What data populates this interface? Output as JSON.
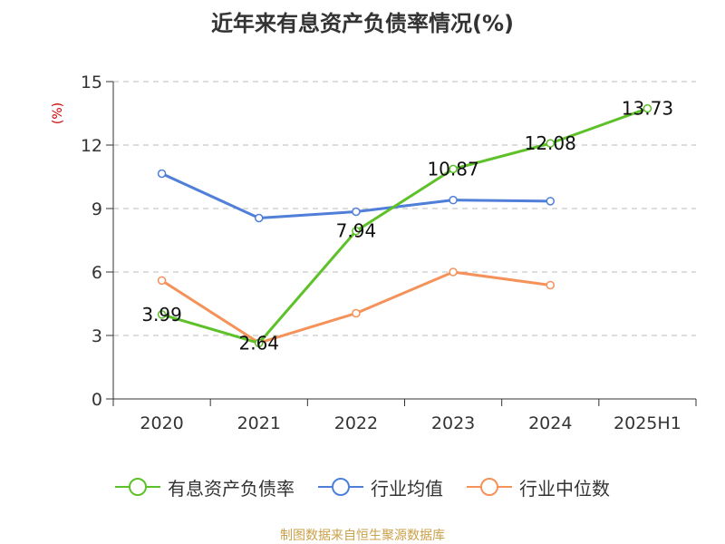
{
  "title": "近年来有息资产负债率情况(%)",
  "footer": "制图数据来自恒生聚源数据库",
  "chart_data": {
    "type": "line",
    "title": "近年来有息资产负债率情况(%)",
    "xlabel": "",
    "ylabel": "(%)",
    "categories": [
      "2020",
      "2021",
      "2022",
      "2023",
      "2024",
      "2025H1"
    ],
    "ylim": [
      0,
      15
    ],
    "yticks": [
      0,
      3,
      6,
      9,
      12,
      15
    ],
    "grid": true,
    "legend_position": "bottom",
    "series": [
      {
        "name": "有息资产负债率",
        "color": "#5ec129",
        "values": [
          3.99,
          2.64,
          7.94,
          10.87,
          12.08,
          13.73
        ],
        "labels": [
          "3.99",
          "2.64",
          "7.94",
          "10.87",
          "12.08",
          "13.73"
        ]
      },
      {
        "name": "行业均值",
        "color": "#4f7fd9",
        "values": [
          10.65,
          8.55,
          8.85,
          9.4,
          9.35,
          null
        ]
      },
      {
        "name": "行业中位数",
        "color": "#f4925a",
        "values": [
          5.6,
          2.65,
          4.05,
          6.0,
          5.38,
          null
        ]
      }
    ]
  }
}
